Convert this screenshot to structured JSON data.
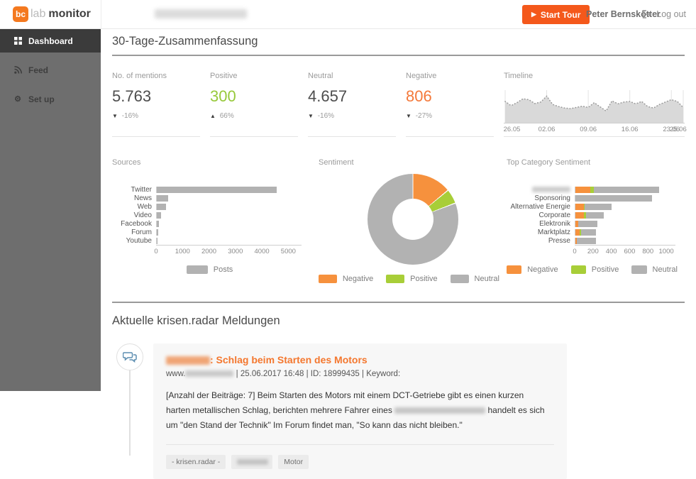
{
  "colors": {
    "accent_orange": "#f4581b",
    "link_orange": "#f4772e",
    "chart_orange": "#f6913d",
    "chart_green": "#a8ce38",
    "chart_gray": "#b2b2b2",
    "positive_green": "#97c93b",
    "negative_orange": "#f4793a",
    "timeline_fill": "#d9d9d9",
    "timeline_line": "#9b9b9b"
  },
  "brand": {
    "badge": "bc",
    "name_light": "lab",
    "name_bold": "monitor"
  },
  "header": {
    "company_redacted": true,
    "start_tour_label": "Start Tour",
    "play_icon": "▶",
    "user_name": "Peter Bernskötter",
    "logout_label": "Log out"
  },
  "sidebar": {
    "items": [
      {
        "label": "Dashboard",
        "icon": "grid-icon",
        "active": true
      },
      {
        "label": "Feed",
        "icon": "rss-icon",
        "active": false
      },
      {
        "label": "Set up",
        "icon": "gear-icon",
        "active": false
      }
    ]
  },
  "summary": {
    "title": "30-Tage-Zusammenfassung",
    "metrics": [
      {
        "label": "No. of mentions",
        "value": "5.763",
        "direction": "down",
        "change": "-16%",
        "value_color": "#4d4d4d"
      },
      {
        "label": "Positive",
        "value": "300",
        "direction": "up",
        "change": "66%",
        "value_color": "#97c93b"
      },
      {
        "label": "Neutral",
        "value": "4.657",
        "direction": "down",
        "change": "-16%",
        "value_color": "#4d4d4d"
      },
      {
        "label": "Negative",
        "value": "806",
        "direction": "down",
        "change": "-27%",
        "value_color": "#f4793a"
      }
    ]
  },
  "chart_data": [
    {
      "name": "timeline",
      "type": "area",
      "title": "Timeline",
      "x_ticks": [
        "26.05",
        "02.06",
        "09.06",
        "16.06",
        "23.06",
        "25.06"
      ],
      "tick_indices": [
        0,
        7,
        14,
        21,
        28,
        30
      ],
      "values": [
        62,
        48,
        58,
        71,
        68,
        55,
        60,
        80,
        52,
        45,
        40,
        38,
        42,
        46,
        42,
        58,
        44,
        30,
        64,
        54,
        60,
        62,
        54,
        62,
        45,
        40,
        52,
        60,
        68,
        62,
        42
      ],
      "ylim": [
        0,
        100
      ],
      "grid": "vertical",
      "legend_position": "none"
    },
    {
      "name": "sources",
      "type": "bar",
      "title": "Sources",
      "categories": [
        "Twitter",
        "News",
        "Web",
        "Video",
        "Facebook",
        "Forum",
        "Youtube"
      ],
      "values": [
        4550,
        430,
        340,
        160,
        80,
        60,
        15
      ],
      "x_ticks": [
        0,
        1000,
        2000,
        3000,
        4000,
        5000
      ],
      "xlim": [
        0,
        5500
      ],
      "legend": [
        {
          "name": "Posts",
          "color": "#b2b2b2"
        }
      ],
      "legend_position": "bottom"
    },
    {
      "name": "sentiment",
      "type": "pie",
      "title": "Sentiment",
      "slices": [
        {
          "name": "Negative",
          "value": 806,
          "color": "#f6913d"
        },
        {
          "name": "Positive",
          "value": 300,
          "color": "#a8ce38"
        },
        {
          "name": "Neutral",
          "value": 4657,
          "color": "#b2b2b2"
        }
      ],
      "legend_position": "bottom"
    },
    {
      "name": "top_category_sentiment",
      "type": "bar",
      "title": "Top Category Sentiment",
      "stacked": true,
      "categories": [
        "",
        "Sponsoring",
        "Alternative Energie",
        "Corporate",
        "Elektronik",
        "Marktplatz",
        "Presse"
      ],
      "category_redacted": [
        true,
        false,
        false,
        false,
        false,
        false,
        false
      ],
      "series": [
        {
          "name": "Negative",
          "color": "#f6913d",
          "values": [
            160,
            0,
            90,
            95,
            35,
            45,
            15
          ]
        },
        {
          "name": "Positive",
          "color": "#a8ce38",
          "values": [
            45,
            0,
            15,
            25,
            0,
            15,
            0
          ]
        },
        {
          "name": "Neutral",
          "color": "#b2b2b2",
          "values": [
            715,
            840,
            290,
            195,
            210,
            170,
            210
          ]
        }
      ],
      "x_ticks": [
        0,
        200,
        400,
        600,
        800,
        1000
      ],
      "xlim": [
        0,
        1100
      ],
      "legend_position": "bottom"
    }
  ],
  "feed_section": {
    "title": "Aktuelle krisen.radar Meldungen",
    "item": {
      "title_redacted_prefix": true,
      "title_rest": ": Schlag beim Starten des Motors",
      "url_prefix": "www.",
      "url_redacted": true,
      "meta_rest": " | 25.06.2017 16:48 | ID: 18999435 | Keyword:",
      "body_part1": "[Anzahl der Beiträge: 7] Beim Starten des Motors mit einem DCT-Getriebe gibt es einen kurzen harten metallischen Schlag, berichten mehrere Fahrer eines ",
      "body_redacted": true,
      "body_part2": " handelt es sich um \"den Stand der Technik\" Im Forum findet man, \"So kann das nicht bleiben.\"",
      "tags": [
        {
          "label": "- krisen.radar -",
          "redacted": false
        },
        {
          "label": "",
          "redacted": true
        },
        {
          "label": "Motor",
          "redacted": false
        }
      ]
    }
  }
}
